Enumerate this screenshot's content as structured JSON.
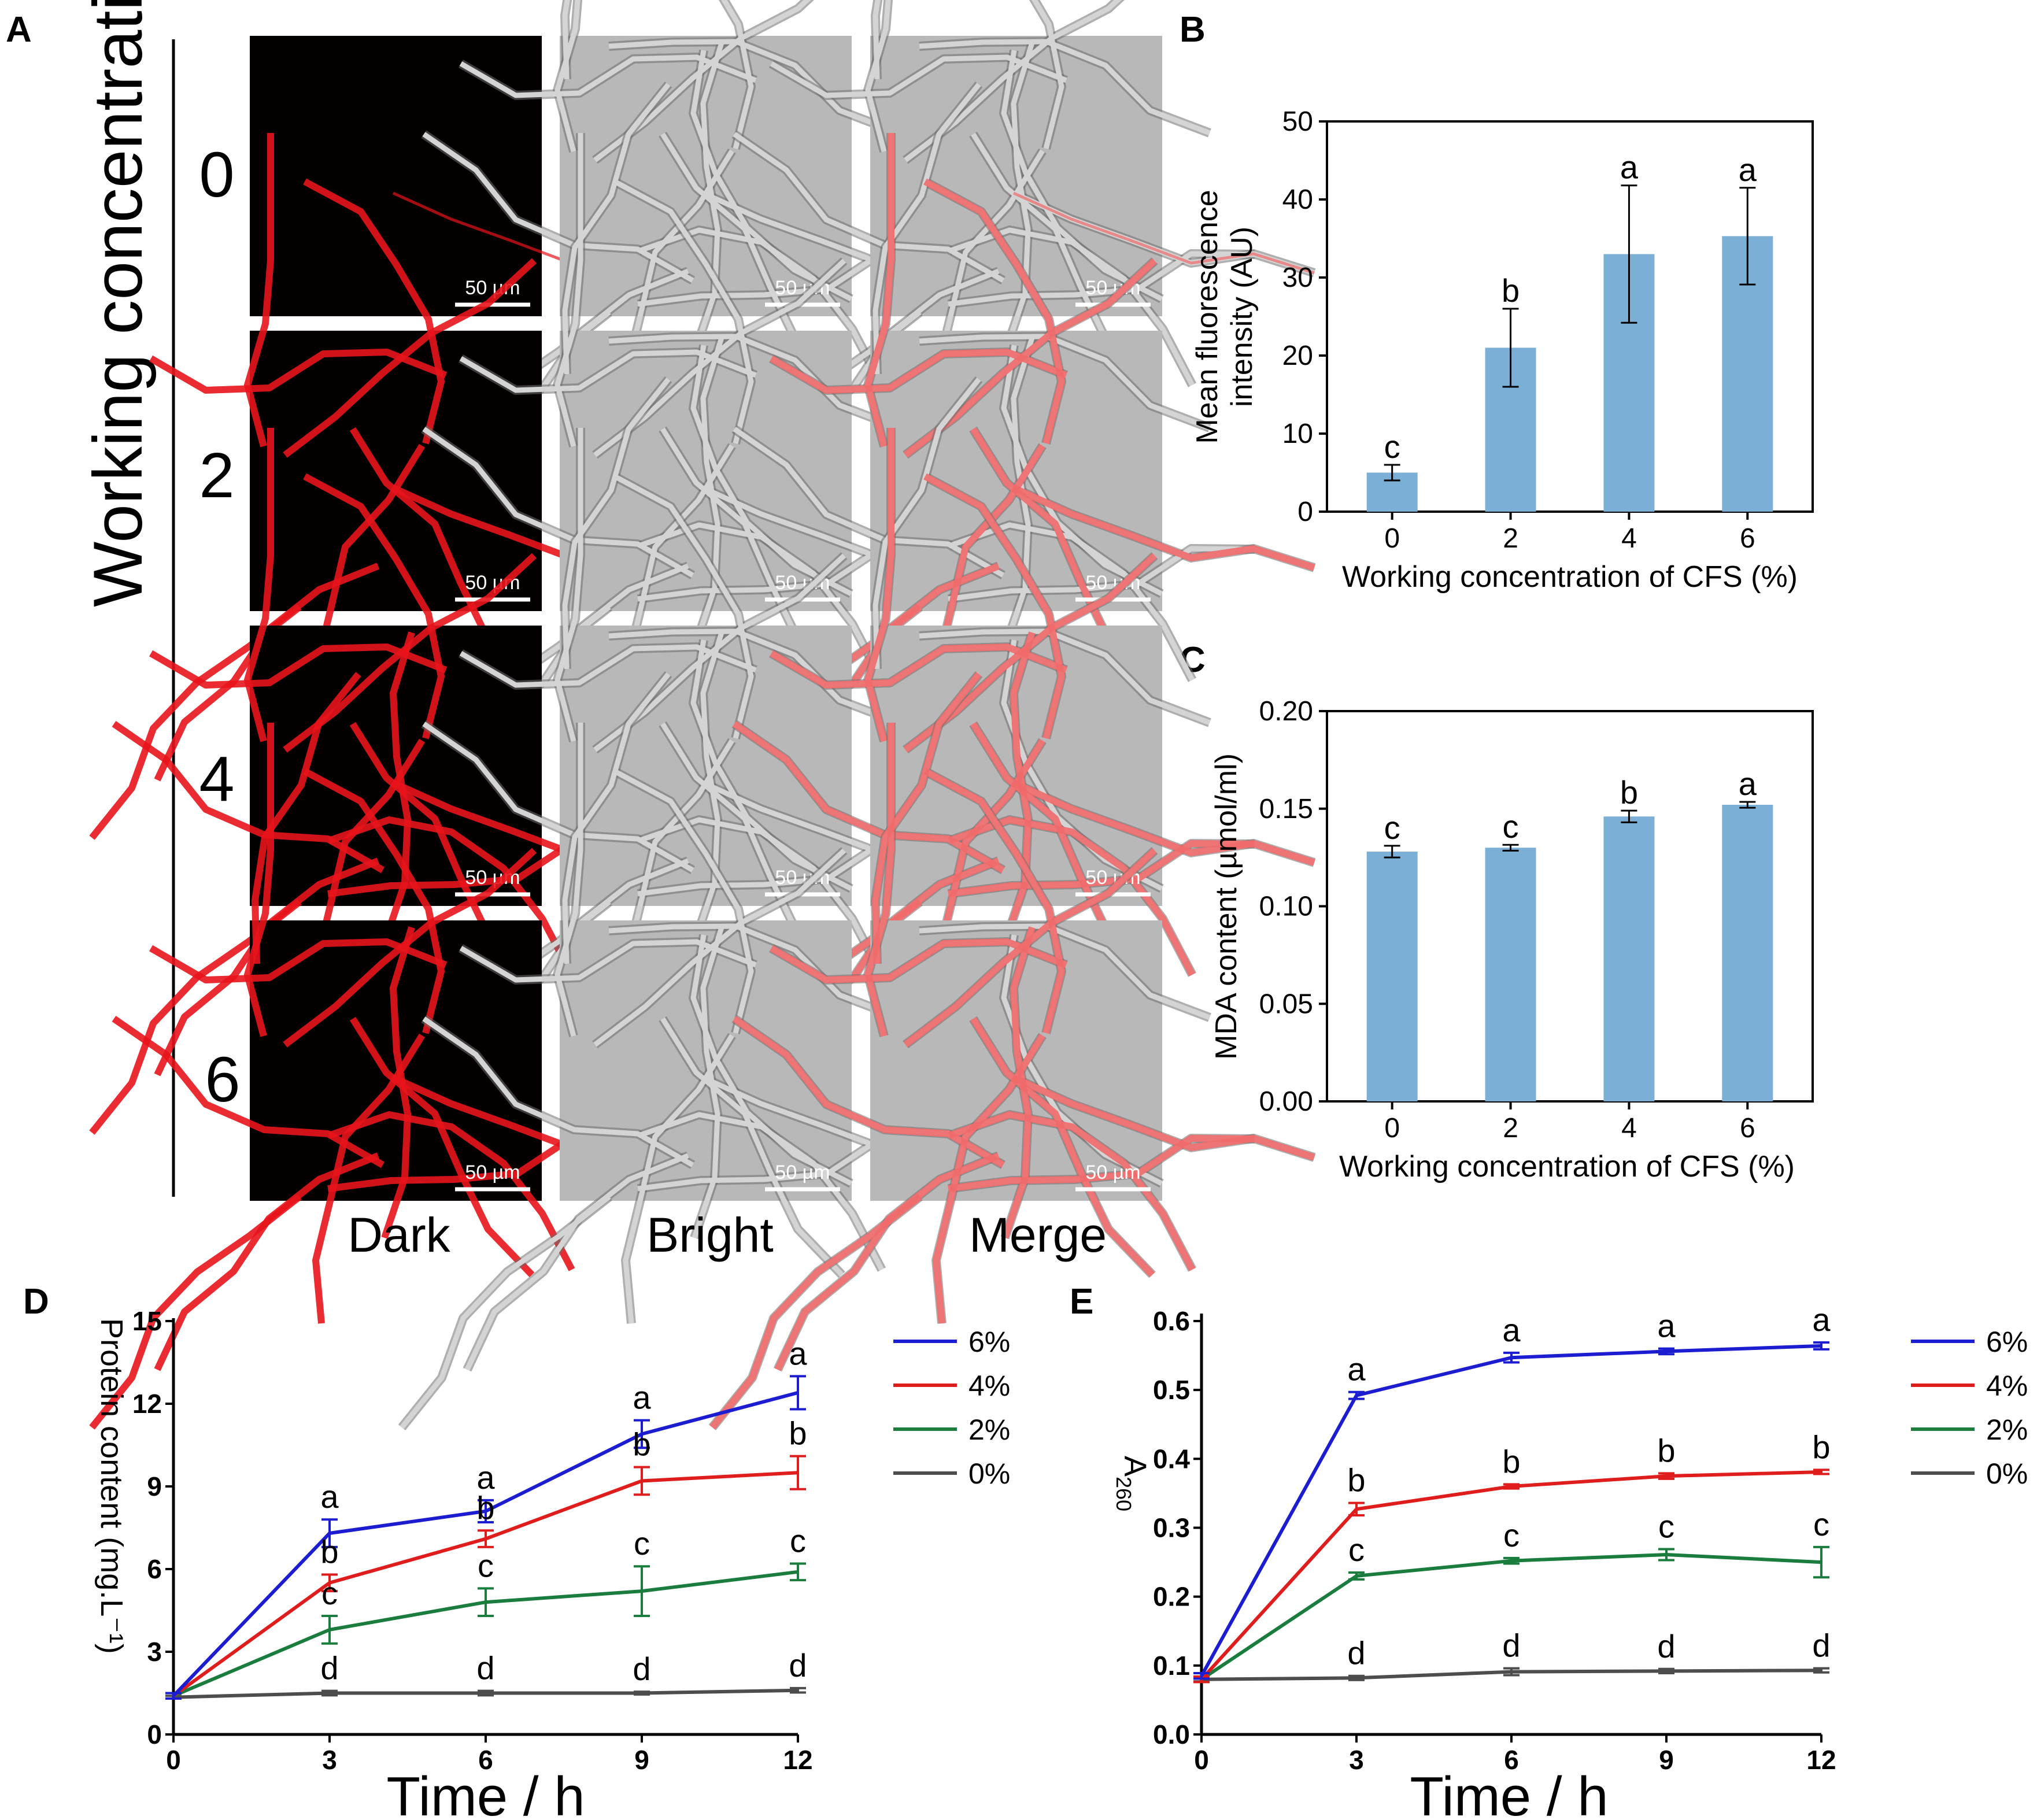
{
  "panel_labels": {
    "a": "A",
    "b": "B",
    "c": "C",
    "d": "D",
    "e": "E"
  },
  "panel_a": {
    "row_axis_label": "Working concentration of CFS  (v:v %)",
    "rows": [
      "0",
      "2",
      "4",
      "6"
    ],
    "columns": [
      "Dark",
      "Bright",
      "Merge"
    ],
    "scale_bar_label": "50 µm",
    "colors": {
      "dark_bg": "#050000",
      "hypha_red": "#e8141b",
      "bright_bg": "#b8b8b8",
      "bright_line": "#6e6e6e",
      "merge_red": "#f06a6a"
    },
    "fluorescence_level": [
      0.1,
      0.55,
      0.8,
      0.85
    ]
  },
  "chart_data": [
    {
      "id": "B",
      "type": "bar",
      "categories": [
        "0",
        "2",
        "4",
        "6"
      ],
      "values": [
        5,
        21,
        33,
        35.3
      ],
      "errors": [
        1,
        5,
        8.8,
        6.2
      ],
      "letters": [
        "c",
        "b",
        "a",
        "a"
      ],
      "xlabel": "Working concentration of CFS (%)",
      "ylabel": [
        "Mean fluorescence",
        "intensity (AU)"
      ],
      "yticks": [
        "0",
        "10",
        "20",
        "30",
        "40",
        "50"
      ],
      "ylim": [
        0,
        50
      ],
      "bar_color": "#7bafd6",
      "grid": false
    },
    {
      "id": "C",
      "type": "bar",
      "categories": [
        "0",
        "2",
        "4",
        "6"
      ],
      "values": [
        0.128,
        0.13,
        0.146,
        0.152
      ],
      "errors": [
        0.003,
        0.0015,
        0.003,
        0.0015
      ],
      "letters": [
        "c",
        "c",
        "b",
        "a"
      ],
      "xlabel": "Working concentration of CFS (%)",
      "ylabel": "MDA content (µmol/ml)",
      "yticks": [
        "0.00",
        "0.05",
        "0.10",
        "0.15",
        "0.20"
      ],
      "ylim": [
        0,
        0.2
      ],
      "bar_color": "#7bafd6",
      "grid": false
    },
    {
      "id": "D",
      "type": "line",
      "x": [
        0,
        3,
        6,
        9,
        12
      ],
      "xticks": [
        "0",
        "3",
        "6",
        "9",
        "12"
      ],
      "yticks": [
        "0",
        "3",
        "6",
        "9",
        "12",
        "15"
      ],
      "ylim": [
        0,
        15
      ],
      "xlabel": "Time / h",
      "ylabel": "Protein content (mg.L⁻¹)",
      "legend_position": "right",
      "series": [
        {
          "name": "6%",
          "color": "#1c1cd0",
          "values": [
            1.4,
            7.3,
            8.1,
            10.9,
            12.4
          ],
          "errors": [
            0.1,
            0.5,
            0.4,
            0.5,
            0.6
          ],
          "letters": [
            "",
            "a",
            "a",
            "a",
            "a"
          ]
        },
        {
          "name": "4%",
          "color": "#e01d1d",
          "values": [
            1.4,
            5.5,
            7.1,
            9.2,
            9.5
          ],
          "errors": [
            0.1,
            0.3,
            0.3,
            0.5,
            0.6
          ],
          "letters": [
            "",
            "b",
            "b",
            "b",
            "b"
          ]
        },
        {
          "name": "2%",
          "color": "#1a7d3e",
          "values": [
            1.4,
            3.8,
            4.8,
            5.2,
            5.9
          ],
          "errors": [
            0.1,
            0.5,
            0.5,
            0.9,
            0.3
          ],
          "letters": [
            "",
            "c",
            "c",
            "c",
            "c"
          ]
        },
        {
          "name": "0%",
          "color": "#4d4d4d",
          "values": [
            1.35,
            1.5,
            1.5,
            1.5,
            1.6
          ],
          "errors": [
            0.05,
            0.08,
            0.08,
            0.05,
            0.08
          ],
          "letters": [
            "",
            "d",
            "d",
            "d",
            "d"
          ]
        }
      ]
    },
    {
      "id": "E",
      "type": "line",
      "x": [
        0,
        3,
        6,
        9,
        12
      ],
      "xticks": [
        "0",
        "3",
        "6",
        "9",
        "12"
      ],
      "yticks": [
        "0.0",
        "0.1",
        "0.2",
        "0.3",
        "0.4",
        "0.5",
        "0.6"
      ],
      "ylim": [
        0,
        0.6
      ],
      "xlabel": "Time / h",
      "ylabel": "A",
      "ylabel_sub": "260",
      "legend_position": "right",
      "series": [
        {
          "name": "6%",
          "color": "#1c1cd0",
          "values": [
            0.085,
            0.492,
            0.547,
            0.556,
            0.564
          ],
          "errors": [
            0.004,
            0.005,
            0.007,
            0.004,
            0.005
          ],
          "letters": [
            "",
            "a",
            "a",
            "a",
            "a"
          ]
        },
        {
          "name": "4%",
          "color": "#e01d1d",
          "values": [
            0.08,
            0.327,
            0.36,
            0.375,
            0.381
          ],
          "errors": [
            0.004,
            0.009,
            0.003,
            0.004,
            0.003
          ],
          "letters": [
            "",
            "b",
            "b",
            "b",
            "b"
          ]
        },
        {
          "name": "2%",
          "color": "#1a7d3e",
          "values": [
            0.08,
            0.23,
            0.252,
            0.261,
            0.25
          ],
          "errors": [
            0.004,
            0.005,
            0.004,
            0.008,
            0.022
          ],
          "letters": [
            "",
            "c",
            "c",
            "c",
            "c"
          ]
        },
        {
          "name": "0%",
          "color": "#4d4d4d",
          "values": [
            0.08,
            0.082,
            0.091,
            0.092,
            0.093
          ],
          "errors": [
            0.003,
            0.003,
            0.005,
            0.003,
            0.003
          ],
          "letters": [
            "",
            "d",
            "d",
            "d",
            "d"
          ]
        }
      ]
    }
  ]
}
